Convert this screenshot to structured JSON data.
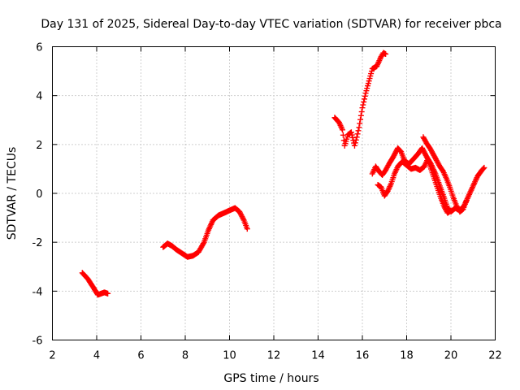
{
  "chart_data": {
    "type": "scatter",
    "title": "Day 131 of 2025, Sidereal Day-to-day VTEC variation (SDTVAR) for receiver pbca",
    "xlabel": "GPS time / hours",
    "ylabel": "SDTVAR / TECUs",
    "xlim": [
      2,
      22
    ],
    "ylim": [
      -6,
      6
    ],
    "xticks": [
      "2",
      "4",
      "6",
      "8",
      "10",
      "12",
      "14",
      "16",
      "18",
      "20",
      "22"
    ],
    "yticks": [
      "-6",
      "-4",
      "-2",
      "0",
      "2",
      "4",
      "6"
    ],
    "grid": true,
    "marker": "+",
    "color": "#ff0000",
    "segments": [
      [
        [
          3.35,
          -3.25
        ],
        [
          3.6,
          -3.5
        ],
        [
          3.85,
          -3.85
        ],
        [
          4.05,
          -4.15
        ],
        [
          4.2,
          -4.1
        ],
        [
          4.35,
          -4.05
        ],
        [
          4.5,
          -4.1
        ]
      ],
      [
        [
          7.0,
          -2.2
        ],
        [
          7.2,
          -2.05
        ],
        [
          7.4,
          -2.15
        ],
        [
          7.6,
          -2.3
        ],
        [
          7.85,
          -2.45
        ],
        [
          8.1,
          -2.6
        ],
        [
          8.35,
          -2.55
        ],
        [
          8.6,
          -2.4
        ],
        [
          8.85,
          -2.0
        ],
        [
          9.05,
          -1.5
        ],
        [
          9.25,
          -1.1
        ],
        [
          9.5,
          -0.9
        ],
        [
          9.75,
          -0.8
        ],
        [
          10.0,
          -0.7
        ],
        [
          10.25,
          -0.6
        ],
        [
          10.45,
          -0.75
        ],
        [
          10.65,
          -1.1
        ],
        [
          10.8,
          -1.45
        ]
      ],
      [
        [
          14.75,
          3.1
        ],
        [
          14.95,
          2.9
        ],
        [
          15.1,
          2.6
        ],
        [
          15.2,
          1.95
        ],
        [
          15.35,
          2.4
        ],
        [
          15.5,
          2.5
        ],
        [
          15.65,
          1.95
        ],
        [
          15.75,
          2.3
        ],
        [
          15.85,
          2.7
        ],
        [
          16.0,
          3.5
        ],
        [
          16.15,
          4.1
        ],
        [
          16.3,
          4.6
        ],
        [
          16.45,
          5.1
        ],
        [
          16.65,
          5.2
        ],
        [
          16.85,
          5.6
        ],
        [
          16.95,
          5.75
        ],
        [
          17.05,
          5.7
        ]
      ],
      [
        [
          16.45,
          0.8
        ],
        [
          16.6,
          1.1
        ],
        [
          16.75,
          0.9
        ],
        [
          16.9,
          0.75
        ],
        [
          17.05,
          0.95
        ],
        [
          17.2,
          1.2
        ],
        [
          17.4,
          1.5
        ],
        [
          17.6,
          1.85
        ],
        [
          17.75,
          1.7
        ],
        [
          17.9,
          1.35
        ],
        [
          18.1,
          1.2
        ],
        [
          18.3,
          1.4
        ],
        [
          18.5,
          1.6
        ],
        [
          18.7,
          1.85
        ],
        [
          18.9,
          1.5
        ],
        [
          19.1,
          1.2
        ],
        [
          19.3,
          0.8
        ],
        [
          19.5,
          0.3
        ],
        [
          19.7,
          -0.2
        ],
        [
          19.85,
          -0.6
        ],
        [
          20.0,
          -0.75
        ],
        [
          20.2,
          -0.6
        ],
        [
          20.4,
          -0.7
        ],
        [
          20.6,
          -0.5
        ],
        [
          20.8,
          -0.1
        ],
        [
          21.0,
          0.3
        ],
        [
          21.2,
          0.7
        ],
        [
          21.4,
          0.95
        ],
        [
          21.5,
          1.05
        ]
      ],
      [
        [
          16.7,
          0.35
        ],
        [
          16.85,
          0.25
        ],
        [
          17.0,
          -0.1
        ],
        [
          17.15,
          0.1
        ],
        [
          17.3,
          0.4
        ],
        [
          17.45,
          0.8
        ],
        [
          17.6,
          1.1
        ],
        [
          17.8,
          1.3
        ],
        [
          18.0,
          1.15
        ],
        [
          18.2,
          1.0
        ],
        [
          18.4,
          1.05
        ],
        [
          18.6,
          0.95
        ],
        [
          18.8,
          1.1
        ],
        [
          18.95,
          1.4
        ],
        [
          19.1,
          1.0
        ],
        [
          19.25,
          0.6
        ],
        [
          19.4,
          0.2
        ],
        [
          19.55,
          -0.2
        ],
        [
          19.7,
          -0.55
        ],
        [
          19.85,
          -0.8
        ],
        [
          20.0,
          -0.7
        ]
      ],
      [
        [
          18.75,
          2.3
        ],
        [
          18.9,
          2.05
        ],
        [
          19.05,
          1.85
        ],
        [
          19.2,
          1.6
        ],
        [
          19.35,
          1.35
        ],
        [
          19.5,
          1.1
        ],
        [
          19.65,
          0.9
        ],
        [
          19.8,
          0.6
        ],
        [
          19.95,
          0.25
        ],
        [
          20.1,
          -0.15
        ],
        [
          20.25,
          -0.5
        ],
        [
          20.4,
          -0.75
        ],
        [
          20.55,
          -0.65
        ],
        [
          20.7,
          -0.3
        ]
      ]
    ]
  }
}
